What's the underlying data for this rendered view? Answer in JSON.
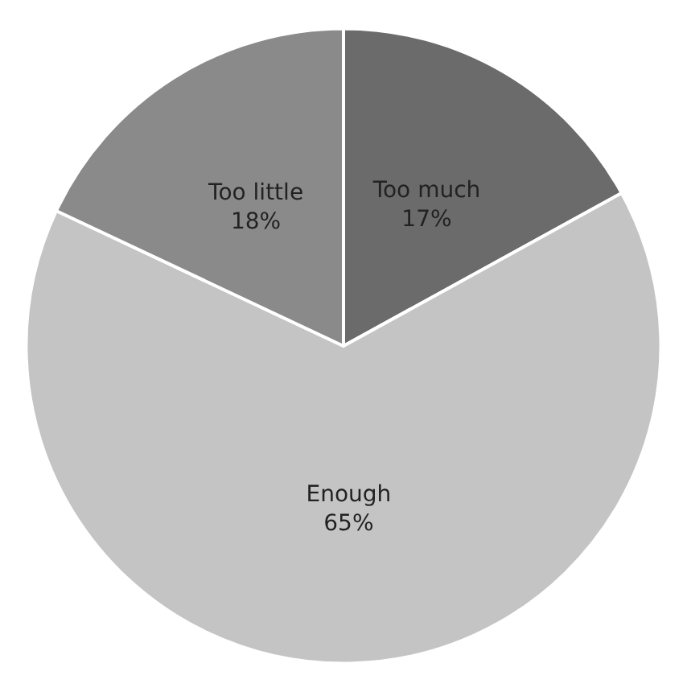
{
  "chart_data": {
    "type": "pie",
    "categories": [
      "Too much",
      "Enough",
      "Too little"
    ],
    "values": [
      17,
      65,
      18
    ],
    "colors": [
      "#6b6b6b",
      "#c4c4c4",
      "#8a8a8a"
    ],
    "value_labels": [
      "17%",
      "65%",
      "18%"
    ],
    "legend": false
  }
}
